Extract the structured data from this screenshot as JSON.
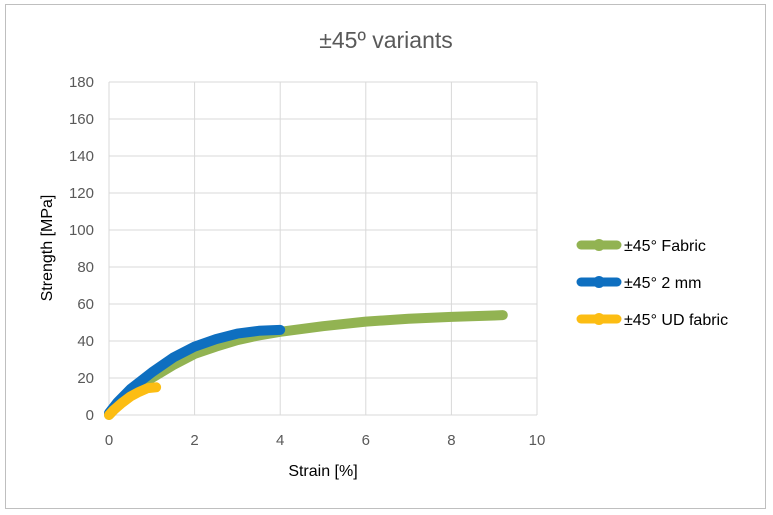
{
  "chart_data": {
    "type": "line",
    "title": "±45º variants",
    "xlabel": "Strain [%]",
    "ylabel": "Strength [MPa]",
    "xlim": [
      0,
      10
    ],
    "ylim": [
      0,
      180
    ],
    "xticks": [
      0,
      2,
      4,
      6,
      8,
      10
    ],
    "xtick_labels": [
      "0",
      "2",
      "4",
      "6",
      "8",
      "10"
    ],
    "yticks": [
      0,
      20,
      40,
      60,
      80,
      100,
      120,
      140,
      160,
      180
    ],
    "ytick_labels": [
      "0",
      "20",
      "40",
      "60",
      "80",
      "100",
      "120",
      "140",
      "160",
      "180"
    ],
    "grid": "vertical and horizontal major gridlines",
    "legend_position": "right",
    "series": [
      {
        "name": "±45° Fabric",
        "color": "#92b352",
        "x": [
          0,
          0.2,
          0.5,
          1.0,
          1.5,
          2.0,
          2.5,
          3.0,
          3.5,
          4.0,
          5.0,
          6.0,
          7.0,
          8.0,
          9.0,
          9.2
        ],
        "y": [
          0,
          5,
          12,
          20,
          27,
          33,
          37,
          40.5,
          43,
          45,
          48,
          50.5,
          52,
          53,
          53.8,
          54
        ]
      },
      {
        "name": "±45° 2 mm",
        "color": "#0e6fc0",
        "x": [
          0,
          0.2,
          0.5,
          1.0,
          1.5,
          2.0,
          2.5,
          3.0,
          3.5,
          4.0
        ],
        "y": [
          1,
          7,
          14,
          23,
          31,
          37,
          41,
          44,
          45.5,
          46
        ]
      },
      {
        "name": "±45° UD fabric",
        "color": "#fcbd13",
        "x": [
          0,
          0.1,
          0.3,
          0.5,
          0.7,
          0.9,
          1.1
        ],
        "y": [
          0,
          2.5,
          6.5,
          10,
          12.5,
          14.5,
          15
        ]
      }
    ]
  }
}
